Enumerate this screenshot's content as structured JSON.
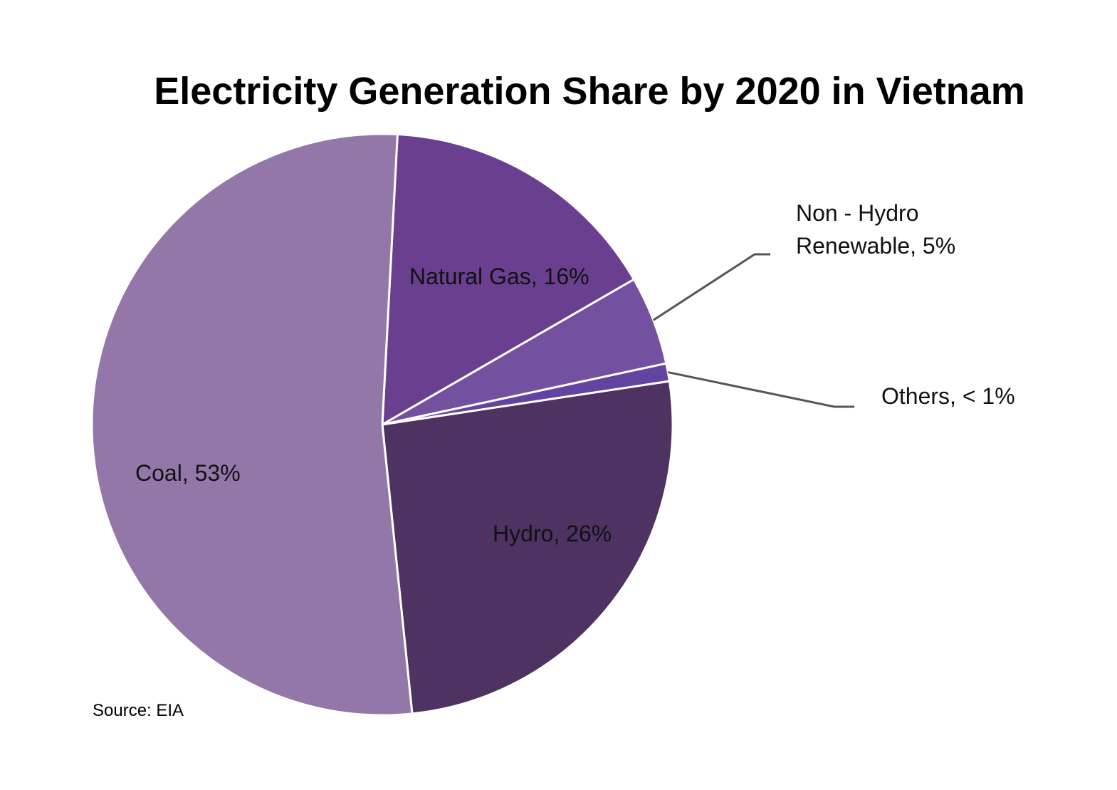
{
  "chart_data": {
    "type": "pie",
    "title": "Electricity Generation Share by 2020 in Vietnam",
    "slices": [
      {
        "name": "Natural Gas",
        "value": 16,
        "label": "Natural Gas, 16%",
        "color": "#6a3f8f"
      },
      {
        "name": "Non - Hydro Renewable",
        "value": 5,
        "label_lines": [
          "Non - Hydro",
          "Renewable, 5%"
        ],
        "color": "#7451a0"
      },
      {
        "name": "Others",
        "value": 1,
        "label": "Others, < 1%",
        "color": "#6044a0"
      },
      {
        "name": "Hydro",
        "value": 26,
        "label": "Hydro, 26%",
        "color": "#4d3262"
      },
      {
        "name": "Coal",
        "value": 53,
        "label": "Coal, 53%",
        "color": "#9377a8"
      }
    ],
    "source": "Source: EIA"
  }
}
